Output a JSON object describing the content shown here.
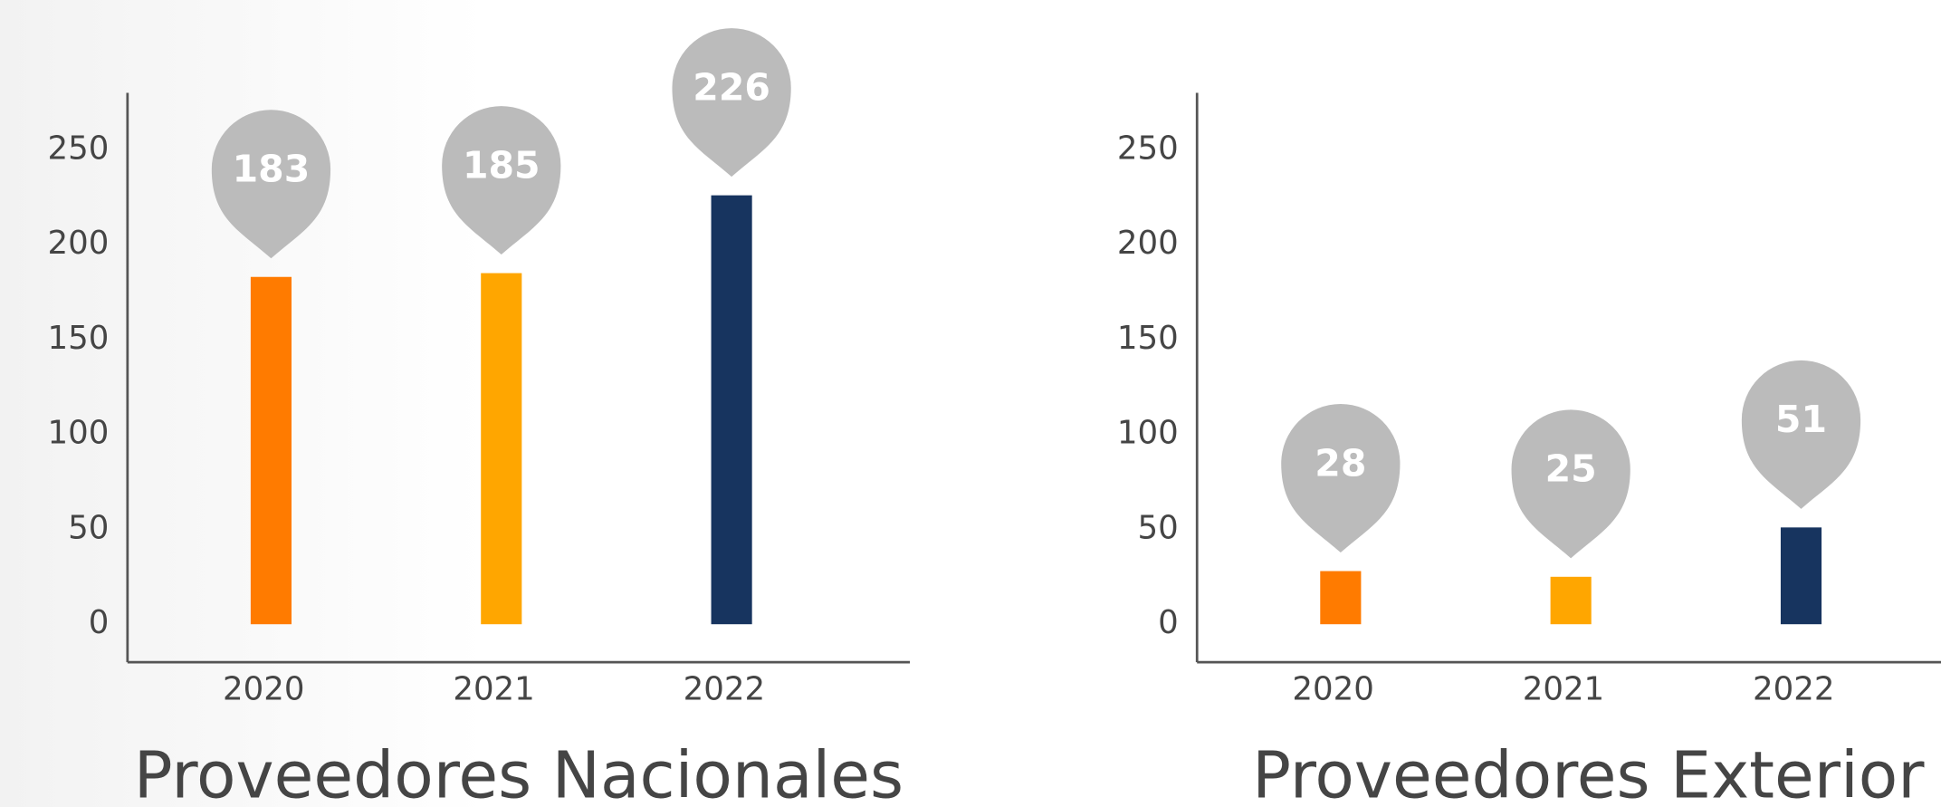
{
  "chart_data": [
    {
      "type": "bar",
      "title": "Proveedores Nacionales",
      "categories": [
        "2020",
        "2021",
        "2022"
      ],
      "values": [
        183,
        185,
        226
      ],
      "colors": [
        "#ff7b00",
        "#ffa600",
        "#17345f"
      ],
      "ylim": [
        -20,
        280
      ],
      "yticks": [
        0,
        50,
        100,
        150,
        200,
        250
      ]
    },
    {
      "type": "bar",
      "title": "Proveedores Exterior",
      "categories": [
        "2020",
        "2021",
        "2022"
      ],
      "values": [
        28,
        25,
        51
      ],
      "colors": [
        "#ff7b00",
        "#ffa600",
        "#17345f"
      ],
      "ylim": [
        -20,
        280
      ],
      "yticks": [
        0,
        50,
        100,
        150,
        200,
        250
      ]
    }
  ]
}
